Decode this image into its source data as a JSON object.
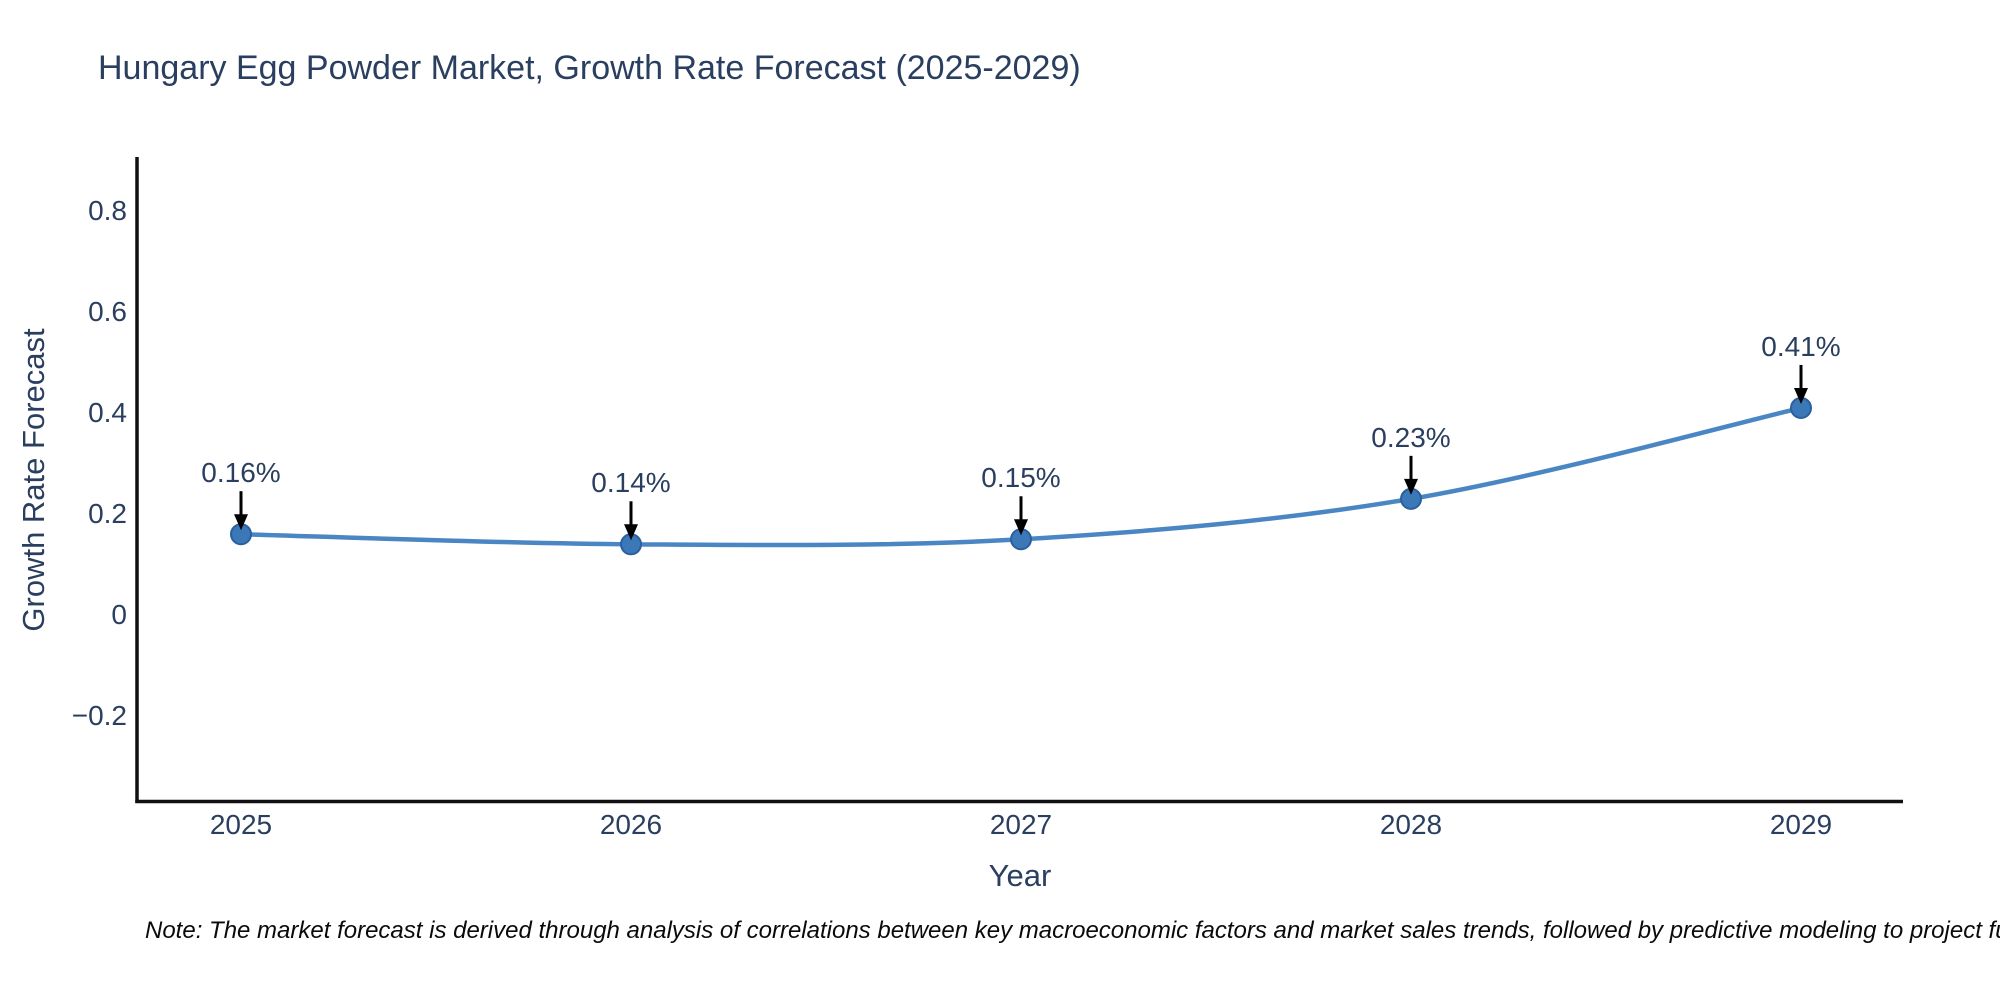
{
  "chart": {
    "title": "Hungary Egg Powder Market, Growth Rate Forecast (2025-2029)",
    "x_axis": {
      "label": "Year",
      "tick_labels": [
        "2025",
        "2026",
        "2027",
        "2028",
        "2029"
      ]
    },
    "y_axis": {
      "label": "Growth Rate Forecast",
      "tick_labels": [
        "0.8",
        "0.6",
        "0.4",
        "0.2",
        "0",
        "−0.2"
      ],
      "tick_values": [
        0.8,
        0.6,
        0.4,
        0.2,
        0,
        -0.2
      ]
    },
    "point_labels": [
      "0.16%",
      "0.14%",
      "0.15%",
      "0.23%",
      "0.41%"
    ],
    "colors": {
      "text": "#2a3f5f",
      "axis_line": "#111111",
      "trace_line": "#4a86c4",
      "marker_fill": "#3a78b8",
      "marker_edge": "#2c5f9e",
      "arrow": "#000000"
    }
  },
  "note": {
    "text": "Note: The market forecast is derived through analysis of correlations between key macroeconomic factors and market sales trends, followed by predictive modeling to project future sales."
  },
  "chart_data": {
    "type": "line",
    "title": "Hungary Egg Powder Market, Growth Rate Forecast (2025-2029)",
    "x": [
      2025,
      2026,
      2027,
      2028,
      2029
    ],
    "series": [
      {
        "name": "Growth Rate Forecast",
        "values": [
          0.16,
          0.14,
          0.15,
          0.23,
          0.41
        ]
      }
    ],
    "point_labels": [
      "0.16%",
      "0.14%",
      "0.15%",
      "0.23%",
      "0.41%"
    ],
    "xlabel": "Year",
    "ylabel": "Growth Rate Forecast",
    "yticks": [
      0.8,
      0.6,
      0.4,
      0.2,
      0,
      -0.2
    ],
    "ylim": [
      -0.39,
      0.91
    ],
    "line_shape": "spline",
    "grid": false,
    "legend": false,
    "markers": true,
    "annotations_arrows": true
  }
}
